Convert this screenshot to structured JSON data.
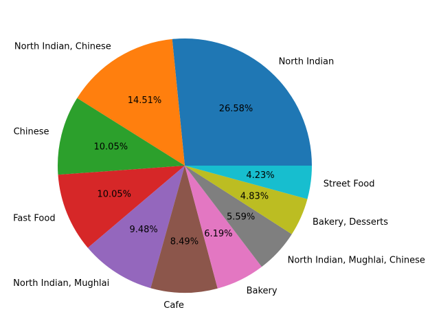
{
  "chart_data": {
    "type": "pie",
    "title": "",
    "start_angle_deg": 0,
    "direction": "counterclockwise",
    "slices": [
      {
        "label": "North Indian",
        "value": 26.58,
        "pct_text": "26.58%",
        "color": "#1f77b4"
      },
      {
        "label": "North Indian, Chinese",
        "value": 14.51,
        "pct_text": "14.51%",
        "color": "#ff7f0e"
      },
      {
        "label": "Chinese",
        "value": 10.05,
        "pct_text": "10.05%",
        "color": "#2ca02c"
      },
      {
        "label": "Fast Food",
        "value": 10.05,
        "pct_text": "10.05%",
        "color": "#d62728"
      },
      {
        "label": "North Indian, Mughlai",
        "value": 9.48,
        "pct_text": "9.48%",
        "color": "#9467bd"
      },
      {
        "label": "Cafe",
        "value": 8.49,
        "pct_text": "8.49%",
        "color": "#8c564b"
      },
      {
        "label": "Bakery",
        "value": 6.19,
        "pct_text": "6.19%",
        "color": "#e377c2"
      },
      {
        "label": "North Indian, Mughlai, Chinese",
        "value": 5.59,
        "pct_text": "5.59%",
        "color": "#7f7f7f"
      },
      {
        "label": "Bakery, Desserts",
        "value": 4.83,
        "pct_text": "4.83%",
        "color": "#bcbd22"
      },
      {
        "label": "Street Food",
        "value": 4.23,
        "pct_text": "4.23%",
        "color": "#17becf"
      }
    ]
  }
}
